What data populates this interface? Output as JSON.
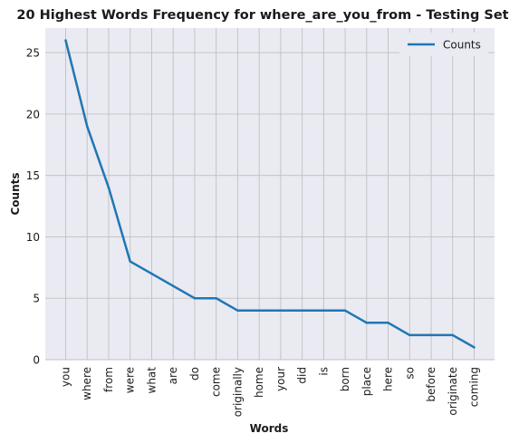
{
  "chart_data": {
    "type": "line",
    "title": "20 Highest Words Frequency for where_are_you_from - Testing Set",
    "xlabel": "Words",
    "ylabel": "Counts",
    "categories": [
      "you",
      "where",
      "from",
      "were",
      "what",
      "are",
      "do",
      "come",
      "originally",
      "home",
      "your",
      "did",
      "is",
      "born",
      "place",
      "here",
      "so",
      "before",
      "originate",
      "coming"
    ],
    "series": [
      {
        "name": "Counts",
        "values": [
          26,
          19,
          14,
          8,
          7,
          6,
          5,
          5,
          4,
          4,
          4,
          4,
          4,
          4,
          3,
          3,
          2,
          2,
          2,
          1
        ]
      }
    ],
    "ylim": [
      0,
      27
    ],
    "yticks": [
      0,
      5,
      10,
      15,
      20,
      25
    ],
    "grid": true,
    "legend": "top-right",
    "colors": {
      "line": "#1f77b4",
      "background": "#eaeaf2",
      "grid": "#c0c0c0"
    }
  }
}
